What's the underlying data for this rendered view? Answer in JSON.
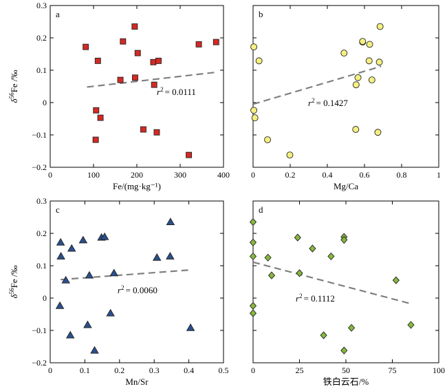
{
  "chart_data": [
    {
      "panel": "a",
      "type": "scatter",
      "xlabel": "Fe/(mg·kg⁻¹)",
      "ylabel_main": "δ",
      "ylabel_sup": "56",
      "ylabel_rest": "Fe /‰",
      "xlim": [
        0,
        400
      ],
      "ylim": [
        -0.2,
        0.3
      ],
      "xticks": [
        "0",
        "100",
        "200",
        "300",
        "400"
      ],
      "yticks": [
        "−0.2",
        "−0.1",
        "0",
        "0.1",
        "0.2",
        "0.3"
      ],
      "marker": "square",
      "color": "#d42a25",
      "r2_label": "= 0.0111",
      "trend": {
        "x0": 85,
        "y0": 0.048,
        "x1": 385,
        "y1": 0.094
      },
      "points": [
        [
          82,
          0.172
        ],
        [
          110,
          0.129
        ],
        [
          162,
          0.07
        ],
        [
          168,
          0.189
        ],
        [
          195,
          0.235
        ],
        [
          202,
          0.153
        ],
        [
          196,
          0.077
        ],
        [
          238,
          0.125
        ],
        [
          250,
          0.129
        ],
        [
          240,
          0.055
        ],
        [
          343,
          0.18
        ],
        [
          383,
          0.187
        ],
        [
          106,
          -0.024
        ],
        [
          116,
          -0.047
        ],
        [
          105,
          -0.115
        ],
        [
          215,
          -0.083
        ],
        [
          246,
          -0.092
        ],
        [
          320,
          -0.162
        ]
      ]
    },
    {
      "panel": "b",
      "type": "scatter",
      "xlabel": "Mg/Ca",
      "xlim": [
        0,
        1
      ],
      "ylim": [
        -0.2,
        0.3
      ],
      "xticks": [
        "0",
        "0.2",
        "0.4",
        "0.6",
        "0.8",
        "1"
      ],
      "marker": "circle",
      "color": "#f5f07f",
      "r2_label": "= 0.1427",
      "trend": {
        "x0": 0.0,
        "y0": -0.005,
        "x1": 0.69,
        "y1": 0.112
      },
      "points": [
        [
          0.004,
          0.172
        ],
        [
          0.032,
          0.129
        ],
        [
          0.004,
          -0.024
        ],
        [
          0.01,
          -0.047
        ],
        [
          0.078,
          -0.115
        ],
        [
          0.198,
          -0.162
        ],
        [
          0.49,
          0.153
        ],
        [
          0.59,
          0.187
        ],
        [
          0.59,
          0.189
        ],
        [
          0.628,
          0.18
        ],
        [
          0.625,
          0.129
        ],
        [
          0.684,
          0.235
        ],
        [
          0.68,
          0.125
        ],
        [
          0.565,
          0.077
        ],
        [
          0.555,
          0.055
        ],
        [
          0.64,
          0.07
        ],
        [
          0.553,
          -0.083
        ],
        [
          0.672,
          -0.092
        ]
      ]
    },
    {
      "panel": "c",
      "type": "scatter",
      "xlabel": "Mn/Sr",
      "ylabel_main": "δ",
      "ylabel_sup": "56",
      "ylabel_rest": "Fe /‰",
      "xlim": [
        0,
        0.5
      ],
      "ylim": [
        -0.2,
        0.3
      ],
      "xticks": [
        "0",
        "0.1",
        "0.2",
        "0.3",
        "0.4",
        "0.5"
      ],
      "yticks": [
        "−0.2",
        "−0.1",
        "0",
        "0.1",
        "0.2",
        "0.3"
      ],
      "marker": "triangle",
      "color": "#2b4f8c",
      "r2_label": "= 0.0060",
      "trend": {
        "x0": 0.03,
        "y0": 0.057,
        "x1": 0.405,
        "y1": 0.087
      },
      "points": [
        [
          0.03,
          0.172
        ],
        [
          0.062,
          0.153
        ],
        [
          0.031,
          0.129
        ],
        [
          0.095,
          0.179
        ],
        [
          0.148,
          0.187
        ],
        [
          0.157,
          0.189
        ],
        [
          0.347,
          0.235
        ],
        [
          0.308,
          0.125
        ],
        [
          0.346,
          0.129
        ],
        [
          0.045,
          0.055
        ],
        [
          0.113,
          0.07
        ],
        [
          0.184,
          0.077
        ],
        [
          0.028,
          -0.024
        ],
        [
          0.174,
          -0.047
        ],
        [
          0.108,
          -0.083
        ],
        [
          0.058,
          -0.115
        ],
        [
          0.405,
          -0.092
        ],
        [
          0.128,
          -0.162
        ]
      ]
    },
    {
      "panel": "d",
      "type": "scatter",
      "xlabel": "铁白云石/%",
      "xlim": [
        0,
        100
      ],
      "ylim": [
        -0.2,
        0.3
      ],
      "xticks": [
        "0",
        "25",
        "50",
        "75",
        "100"
      ],
      "marker": "diamond",
      "color": "#86b83d",
      "r2_label": "= 0.1112",
      "trend": {
        "x0": 0,
        "y0": 0.111,
        "x1": 84,
        "y1": -0.016
      },
      "points": [
        [
          0,
          0.235
        ],
        [
          0,
          0.172
        ],
        [
          0,
          0.129
        ],
        [
          8,
          0.125
        ],
        [
          10,
          0.07
        ],
        [
          24,
          0.187
        ],
        [
          25,
          0.077
        ],
        [
          32,
          0.153
        ],
        [
          42,
          0.129
        ],
        [
          49,
          0.189
        ],
        [
          49,
          0.18
        ],
        [
          0,
          -0.024
        ],
        [
          0,
          -0.047
        ],
        [
          38,
          -0.115
        ],
        [
          49,
          -0.162
        ],
        [
          53,
          -0.092
        ],
        [
          77,
          0.055
        ],
        [
          85,
          -0.083
        ]
      ]
    }
  ]
}
